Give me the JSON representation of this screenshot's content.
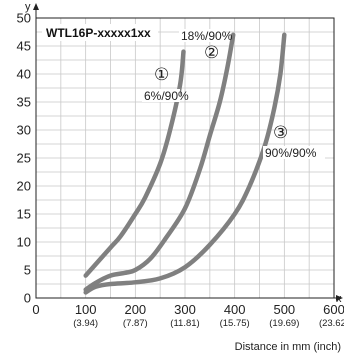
{
  "chart_data": {
    "type": "line",
    "title": "WTL16P-xxxxx1xx",
    "xlabel": "Distance in mm (inch)",
    "ylabel": "y",
    "x_axis_letter": "x",
    "xlim": [
      0,
      600
    ],
    "ylim": [
      0,
      50
    ],
    "grid": true,
    "x_ticks": [
      0,
      100,
      200,
      300,
      400,
      500,
      600
    ],
    "x_tick_sublabels": [
      "",
      "(3.94)",
      "(7.87)",
      "(11.81)",
      "(15.75)",
      "(19.69)",
      "(23.62)"
    ],
    "y_ticks": [
      0,
      5,
      10,
      15,
      20,
      25,
      30,
      35,
      40,
      45,
      50
    ],
    "colors": {
      "line": "#808080",
      "grid": "#c8c8c8",
      "frame": "#222222"
    },
    "series": [
      {
        "marker": "①",
        "annotation": "6%/90%",
        "points": [
          [
            100,
            4
          ],
          [
            120,
            6
          ],
          [
            150,
            9
          ],
          [
            170,
            11
          ],
          [
            200,
            15
          ],
          [
            220,
            18
          ],
          [
            250,
            24
          ],
          [
            270,
            30
          ],
          [
            290,
            38
          ],
          [
            297,
            44
          ]
        ]
      },
      {
        "marker": "②",
        "annotation": "18%/90%",
        "points": [
          [
            100,
            1.5
          ],
          [
            120,
            2.7
          ],
          [
            150,
            4
          ],
          [
            180,
            4.5
          ],
          [
            200,
            5
          ],
          [
            230,
            7
          ],
          [
            260,
            10.5
          ],
          [
            300,
            16
          ],
          [
            330,
            23
          ],
          [
            350,
            29
          ],
          [
            370,
            35
          ],
          [
            385,
            41
          ],
          [
            397,
            47
          ]
        ]
      },
      {
        "marker": "③",
        "annotation": "90%/90%",
        "points": [
          [
            100,
            1
          ],
          [
            120,
            2
          ],
          [
            150,
            2.5
          ],
          [
            200,
            2.8
          ],
          [
            250,
            3.5
          ],
          [
            300,
            5.5
          ],
          [
            350,
            9.5
          ],
          [
            400,
            15
          ],
          [
            430,
            20
          ],
          [
            460,
            27
          ],
          [
            480,
            34
          ],
          [
            492,
            40
          ],
          [
            500,
            47
          ]
        ]
      }
    ]
  }
}
